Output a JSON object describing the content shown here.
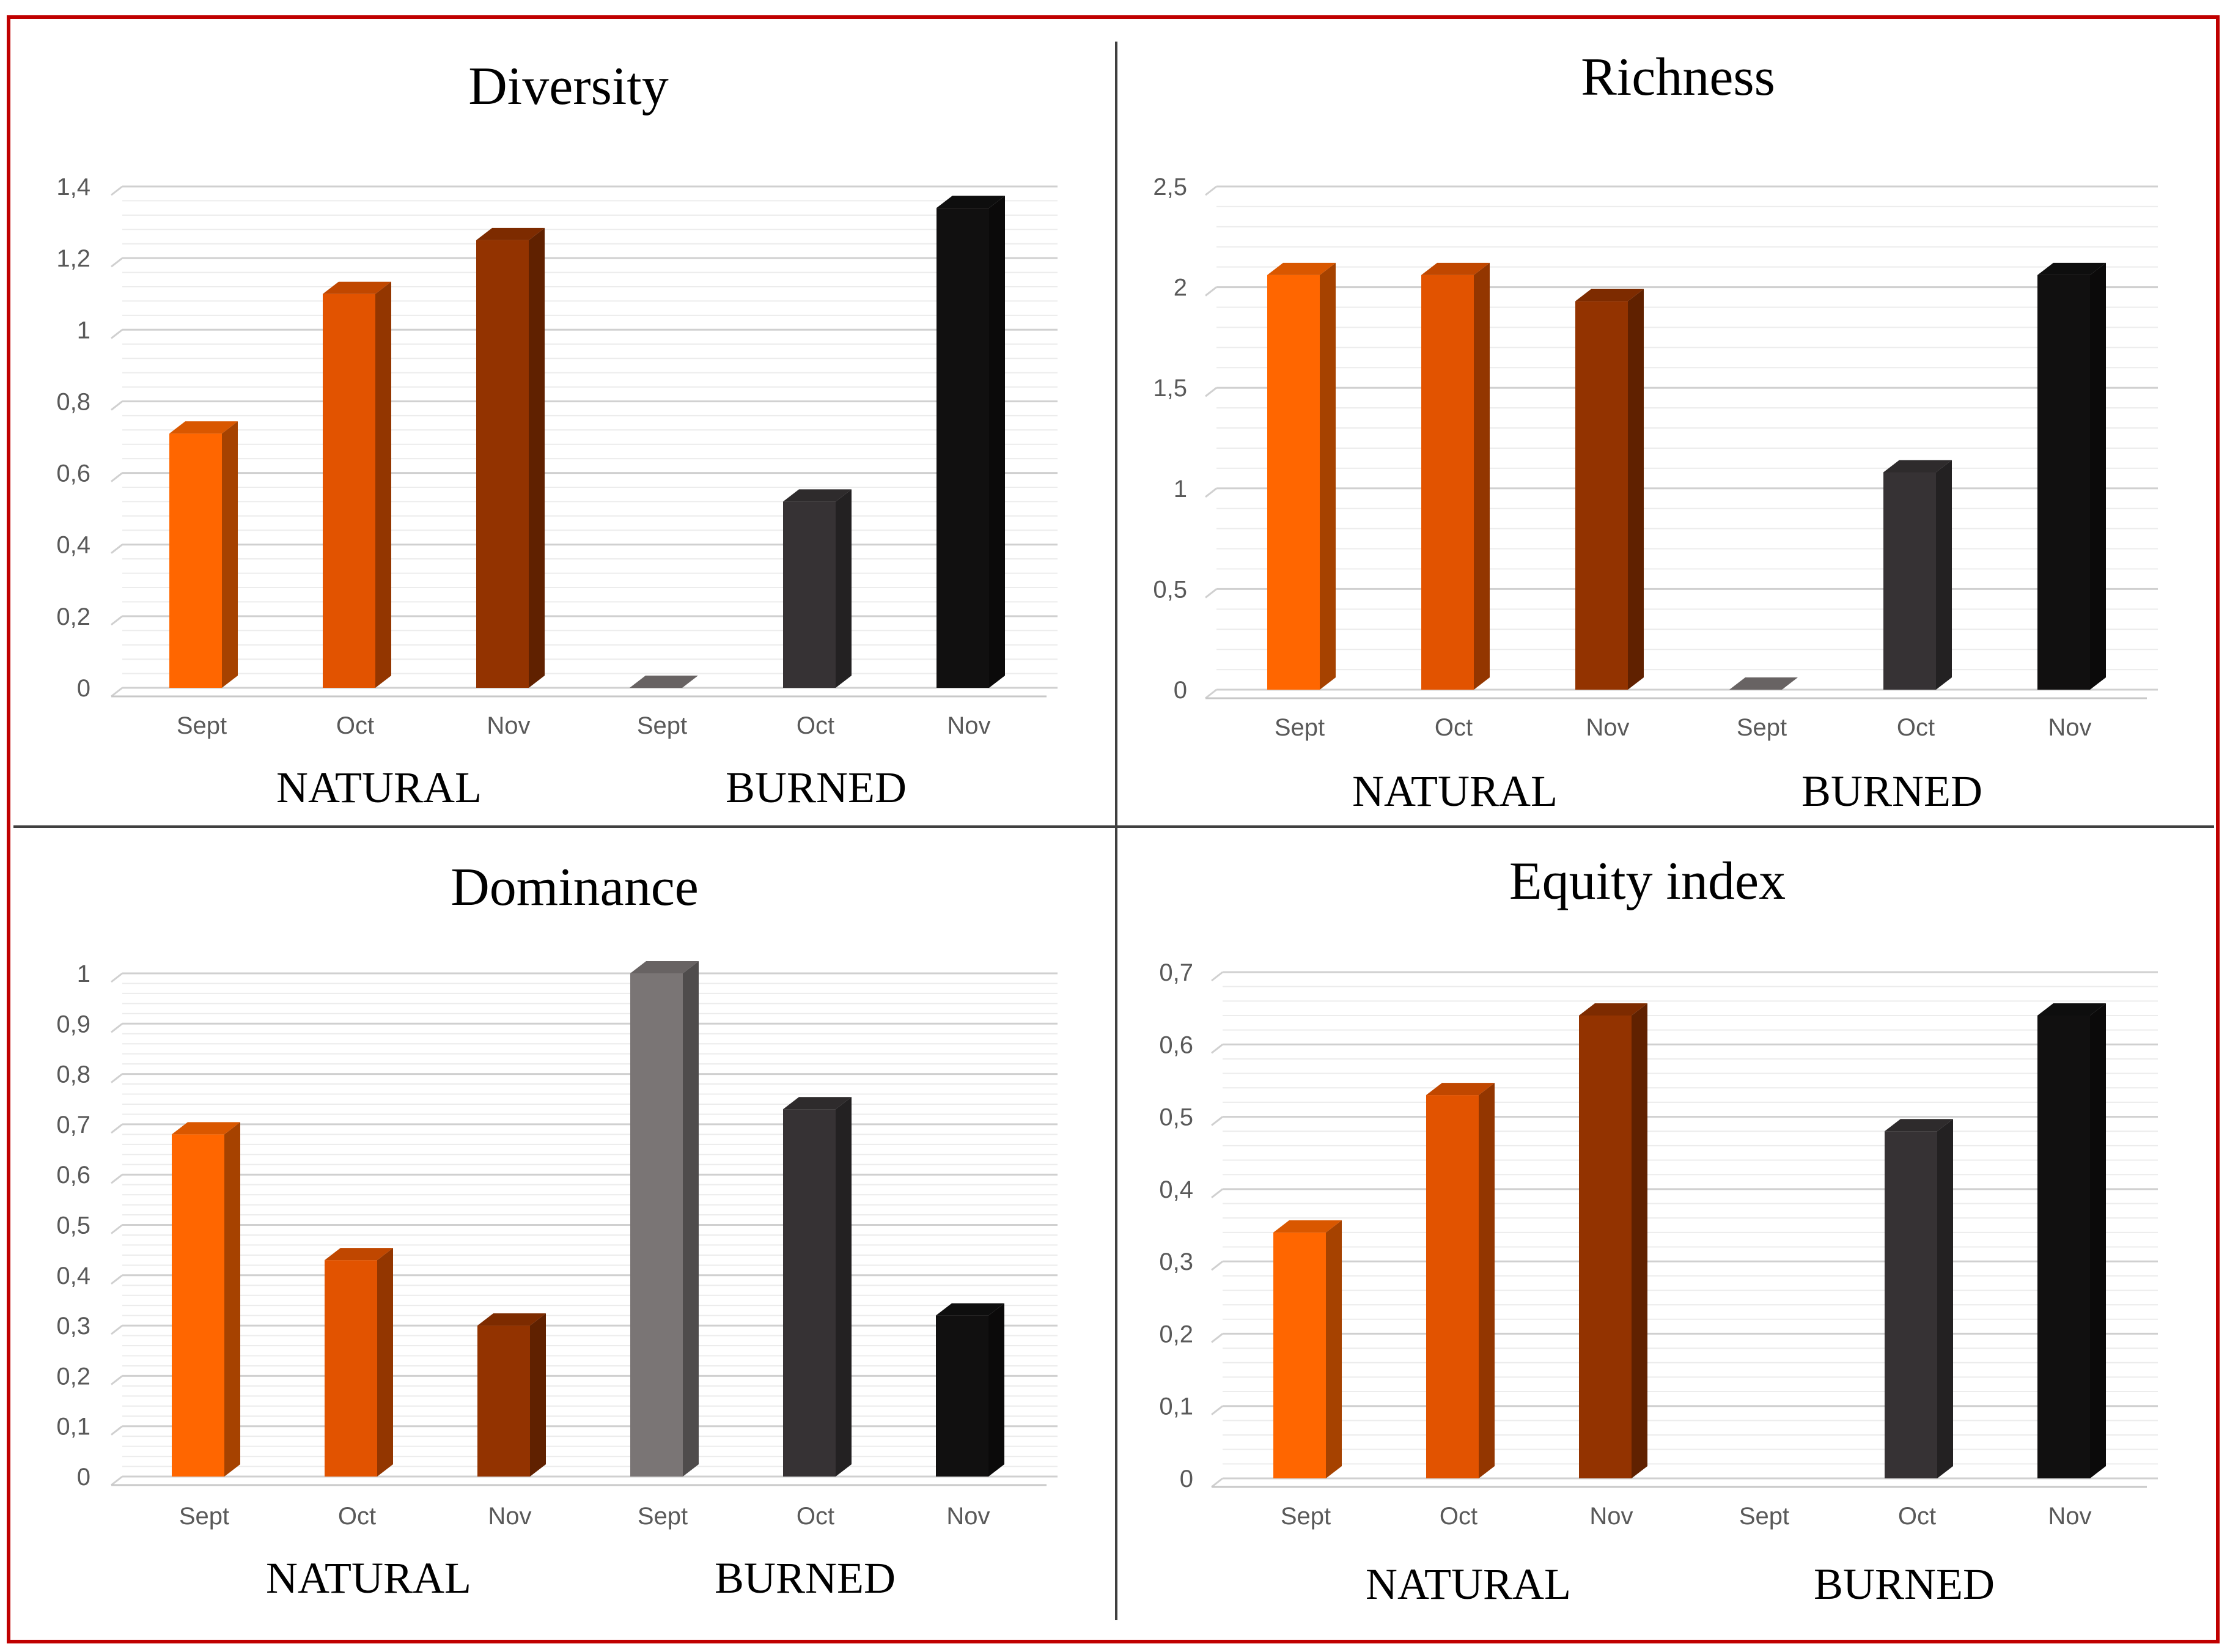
{
  "chart_data": [
    {
      "type": "bar",
      "title": "Diversity",
      "categories": [
        "Sept",
        "Oct",
        "Nov",
        "Sept",
        "Oct",
        "Nov"
      ],
      "groups": [
        "NATURAL",
        "BURNED"
      ],
      "values": [
        0.71,
        1.1,
        1.25,
        0,
        0.52,
        1.34
      ],
      "colors": [
        "#ff6600",
        "#e25300",
        "#933300",
        "#7a7575",
        "#363234",
        "#111010"
      ],
      "ylim": [
        0,
        1.4
      ],
      "ytick_values": [
        0,
        0.2,
        0.4,
        0.6,
        0.8,
        1,
        1.2,
        1.4
      ],
      "ytick_labels": [
        "0",
        "0,2",
        "0,4",
        "0,6",
        "0,8",
        "1",
        "1,2",
        "1,4"
      ]
    },
    {
      "type": "bar",
      "title": "Richness",
      "categories": [
        "Sept",
        "Oct",
        "Nov",
        "Sept",
        "Oct",
        "Nov"
      ],
      "groups": [
        "NATURAL",
        "BURNED"
      ],
      "values": [
        2.06,
        2.06,
        1.93,
        0,
        1.08,
        2.06
      ],
      "colors": [
        "#ff6600",
        "#e25300",
        "#933300",
        "#7a7575",
        "#363234",
        "#111010"
      ],
      "ylim": [
        0,
        2.5
      ],
      "ytick_values": [
        0,
        0.5,
        1,
        1.5,
        2,
        2.5
      ],
      "ytick_labels": [
        "0",
        "0,5",
        "1",
        "1,5",
        "2",
        "2,5"
      ]
    },
    {
      "type": "bar",
      "title": "Dominance",
      "categories": [
        "Sept",
        "Oct",
        "Nov",
        "Sept",
        "Oct",
        "Nov"
      ],
      "groups": [
        "NATURAL",
        "BURNED"
      ],
      "values": [
        0.68,
        0.43,
        0.3,
        1.0,
        0.73,
        0.32
      ],
      "colors": [
        "#ff6600",
        "#e25300",
        "#933300",
        "#7a7575",
        "#363234",
        "#111010"
      ],
      "ylim": [
        0,
        1
      ],
      "ytick_values": [
        0,
        0.1,
        0.2,
        0.3,
        0.4,
        0.5,
        0.6,
        0.7,
        0.8,
        0.9,
        1
      ],
      "ytick_labels": [
        "0",
        "0,1",
        "0,2",
        "0,3",
        "0,4",
        "0,5",
        "0,6",
        "0,7",
        "0,8",
        "0,9",
        "1"
      ]
    },
    {
      "type": "bar",
      "title": "Equity index",
      "categories": [
        "Sept",
        "Oct",
        "Nov",
        "Sept",
        "Oct",
        "Nov"
      ],
      "groups": [
        "NATURAL",
        "BURNED"
      ],
      "values": [
        0.34,
        0.53,
        0.64,
        null,
        0.48,
        0.64
      ],
      "colors": [
        "#ff6600",
        "#e25300",
        "#933300",
        "#7a7575",
        "#363234",
        "#111010"
      ],
      "ylim": [
        0,
        0.7
      ],
      "ytick_values": [
        0,
        0.1,
        0.2,
        0.3,
        0.4,
        0.5,
        0.6,
        0.7
      ],
      "ytick_labels": [
        "0",
        "0,1",
        "0,2",
        "0,3",
        "0,4",
        "0,5",
        "0,6",
        "0,7"
      ]
    }
  ]
}
